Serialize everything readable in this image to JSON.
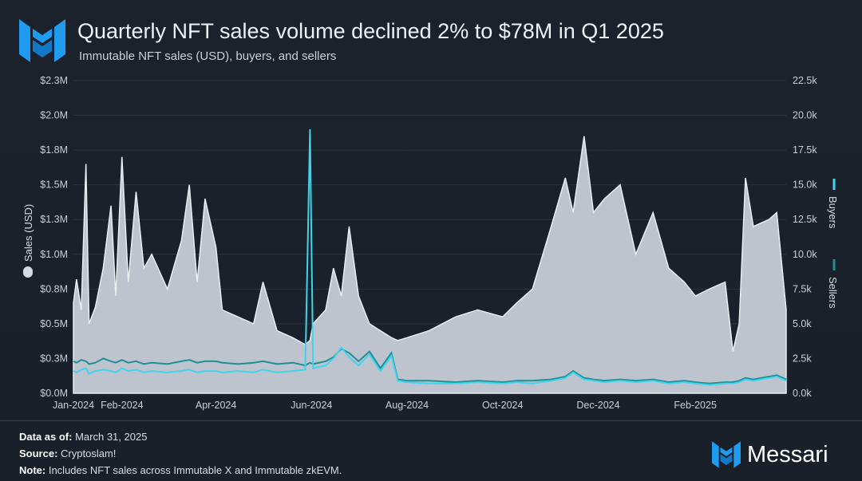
{
  "header": {
    "title": "Quarterly NFT sales volume declined 2% to $78M in Q1 2025",
    "subtitle": "Immutable NFT sales (USD), buyers, and sellers"
  },
  "footer": {
    "data_as_of_label": "Data as of:",
    "data_as_of": "March 31, 2025",
    "source_label": "Source:",
    "source": "Cryptoslam!",
    "note_label": "Note:",
    "note": "Includes NFT sales across Immutable X and Immutable zkEVM.",
    "brand": "Messari"
  },
  "colors": {
    "background": "#1a2029",
    "sales": "#d4dbe4",
    "buyers": "#3fd3ee",
    "sellers": "#1f8f96",
    "logo": "#1f9bf0"
  },
  "chart_data": {
    "type": "area+line",
    "title": "Quarterly NFT sales volume declined 2% to $78M in Q1 2025",
    "ylabel": "Sales (USD)",
    "y2label_series": [
      "Buyers",
      "Sellers"
    ],
    "ylim": [
      0,
      2250000
    ],
    "y2lim": [
      0,
      22500
    ],
    "yticks": [
      "$0.0M",
      "$0.3M",
      "$0.5M",
      "$0.8M",
      "$1.0M",
      "$1.3M",
      "$1.5M",
      "$1.8M",
      "$2.0M",
      "$2.3M"
    ],
    "y2ticks": [
      "0.0k",
      "2.5k",
      "5.0k",
      "7.5k",
      "10.0k",
      "12.5k",
      "15.0k",
      "17.5k",
      "20.0k",
      "22.5k"
    ],
    "xticks": [
      {
        "label": "Jan-2024",
        "date": "2024-01-01"
      },
      {
        "label": "Feb-2024",
        "date": "2024-02-01"
      },
      {
        "label": "Apr-2024",
        "date": "2024-04-01"
      },
      {
        "label": "Jun-2024",
        "date": "2024-06-01"
      },
      {
        "label": "Aug-2024",
        "date": "2024-08-01"
      },
      {
        "label": "Oct-2024",
        "date": "2024-10-01"
      },
      {
        "label": "Dec-2024",
        "date": "2024-12-01"
      },
      {
        "label": "Feb-2025",
        "date": "2025-02-01"
      }
    ],
    "grid": true,
    "legend": "right (vertical)",
    "series": [
      {
        "name": "Sales (USD)",
        "axis": "left",
        "style": "area"
      },
      {
        "name": "Buyers",
        "axis": "right",
        "style": "line"
      },
      {
        "name": "Sellers",
        "axis": "right",
        "style": "line"
      }
    ],
    "points_columns": [
      "date",
      "sales_usd",
      "buyers",
      "sellers"
    ],
    "points": [
      [
        "2024-01-01",
        650000,
        1600,
        2300
      ],
      [
        "2024-01-03",
        820000,
        1500,
        2200
      ],
      [
        "2024-01-06",
        600000,
        1700,
        2400
      ],
      [
        "2024-01-09",
        1650000,
        1800,
        2300
      ],
      [
        "2024-01-11",
        500000,
        1400,
        2100
      ],
      [
        "2024-01-15",
        620000,
        1600,
        2200
      ],
      [
        "2024-01-20",
        900000,
        1700,
        2500
      ],
      [
        "2024-01-25",
        1350000,
        1600,
        2300
      ],
      [
        "2024-01-28",
        700000,
        1500,
        2200
      ],
      [
        "2024-02-01",
        1700000,
        1800,
        2400
      ],
      [
        "2024-02-05",
        800000,
        1600,
        2200
      ],
      [
        "2024-02-10",
        1450000,
        1700,
        2300
      ],
      [
        "2024-02-15",
        900000,
        1500,
        2100
      ],
      [
        "2024-02-20",
        1000000,
        1600,
        2200
      ],
      [
        "2024-03-01",
        750000,
        1500,
        2100
      ],
      [
        "2024-03-10",
        1100000,
        1600,
        2300
      ],
      [
        "2024-03-15",
        1500000,
        1700,
        2400
      ],
      [
        "2024-03-20",
        800000,
        1500,
        2200
      ],
      [
        "2024-03-25",
        1400000,
        1600,
        2300
      ],
      [
        "2024-04-01",
        1050000,
        1600,
        2300
      ],
      [
        "2024-04-05",
        600000,
        1500,
        2200
      ],
      [
        "2024-04-15",
        550000,
        1600,
        2100
      ],
      [
        "2024-04-25",
        500000,
        1500,
        2200
      ],
      [
        "2024-05-01",
        800000,
        1700,
        2300
      ],
      [
        "2024-05-10",
        450000,
        1500,
        2100
      ],
      [
        "2024-05-20",
        400000,
        1600,
        2200
      ],
      [
        "2024-05-28",
        350000,
        1700,
        2000
      ],
      [
        "2024-05-31",
        380000,
        19000,
        2200
      ],
      [
        "2024-06-02",
        500000,
        1800,
        2100
      ],
      [
        "2024-06-10",
        600000,
        2000,
        2300
      ],
      [
        "2024-06-15",
        900000,
        2500,
        2600
      ],
      [
        "2024-06-20",
        700000,
        3300,
        3200
      ],
      [
        "2024-06-25",
        1200000,
        2600,
        2900
      ],
      [
        "2024-07-01",
        700000,
        2000,
        2300
      ],
      [
        "2024-07-08",
        500000,
        2800,
        3000
      ],
      [
        "2024-07-15",
        450000,
        1600,
        1800
      ],
      [
        "2024-07-22",
        400000,
        2700,
        2900
      ],
      [
        "2024-07-26",
        380000,
        900,
        1000
      ],
      [
        "2024-08-01",
        400000,
        800,
        900
      ],
      [
        "2024-08-15",
        450000,
        700,
        900
      ],
      [
        "2024-09-01",
        550000,
        700,
        800
      ],
      [
        "2024-09-15",
        600000,
        800,
        900
      ],
      [
        "2024-10-01",
        550000,
        700,
        800
      ],
      [
        "2024-10-10",
        650000,
        800,
        900
      ],
      [
        "2024-10-20",
        750000,
        700,
        900
      ],
      [
        "2024-11-01",
        1200000,
        900,
        1000
      ],
      [
        "2024-11-10",
        1550000,
        1100,
        1200
      ],
      [
        "2024-11-15",
        1300000,
        1500,
        1600
      ],
      [
        "2024-11-22",
        1850000,
        1000,
        1100
      ],
      [
        "2024-11-28",
        1300000,
        900,
        1000
      ],
      [
        "2024-12-05",
        1400000,
        800,
        900
      ],
      [
        "2024-12-15",
        1500000,
        900,
        1000
      ],
      [
        "2024-12-25",
        1000000,
        800,
        900
      ],
      [
        "2025-01-05",
        1300000,
        900,
        1000
      ],
      [
        "2025-01-15",
        900000,
        700,
        800
      ],
      [
        "2025-01-25",
        800000,
        800,
        900
      ],
      [
        "2025-02-01",
        700000,
        700,
        800
      ],
      [
        "2025-02-10",
        750000,
        600,
        700
      ],
      [
        "2025-02-20",
        800000,
        700,
        800
      ],
      [
        "2025-02-25",
        300000,
        700,
        800
      ],
      [
        "2025-03-01",
        500000,
        800,
        900
      ],
      [
        "2025-03-05",
        1550000,
        1000,
        1100
      ],
      [
        "2025-03-10",
        1200000,
        900,
        1000
      ],
      [
        "2025-03-20",
        1250000,
        1100,
        1200
      ],
      [
        "2025-03-25",
        1300000,
        1200,
        1300
      ],
      [
        "2025-03-31",
        600000,
        900,
        1000
      ]
    ]
  }
}
